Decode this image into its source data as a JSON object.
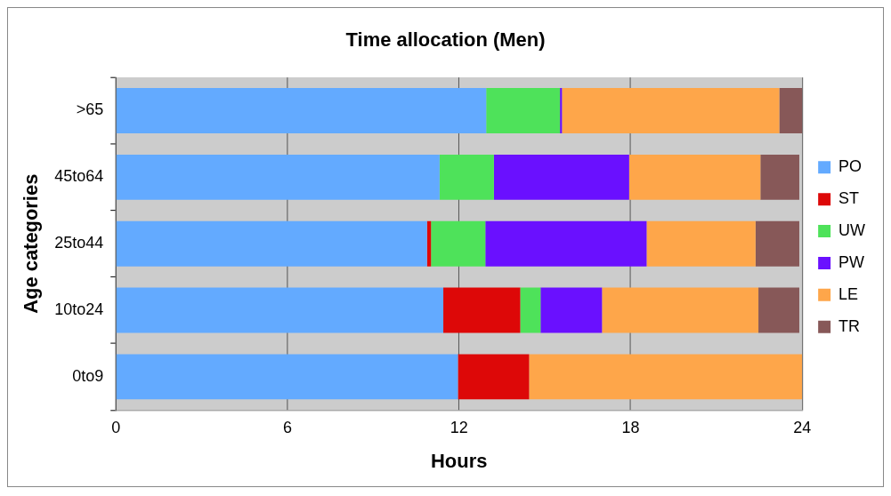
{
  "chart_data": {
    "type": "bar",
    "orientation": "horizontal",
    "stacked": true,
    "title": "Time allocation (Men)",
    "xlabel": "Hours",
    "ylabel": "Age categories",
    "categories": [
      ">65",
      "45to64",
      "25to44",
      "10to24",
      "0to9"
    ],
    "series": [
      {
        "name": "PO",
        "color": "#63aaff",
        "values": [
          12.95,
          11.32,
          10.88,
          11.45,
          11.96
        ]
      },
      {
        "name": "ST",
        "color": "#dd0808",
        "values": [
          null,
          null,
          0.14,
          2.69,
          2.49
        ]
      },
      {
        "name": "UW",
        "color": "#4ee25a",
        "values": [
          2.58,
          1.9,
          1.9,
          0.71,
          null
        ]
      },
      {
        "name": "PW",
        "color": "#6a10ff",
        "values": [
          0.07,
          4.73,
          5.64,
          2.15,
          null
        ]
      },
      {
        "name": "LE",
        "color": "#fea64a",
        "values": [
          7.6,
          4.59,
          3.81,
          5.47,
          9.55
        ]
      },
      {
        "name": "TR",
        "color": "#875858",
        "values": [
          0.85,
          1.36,
          1.53,
          1.43,
          null
        ]
      }
    ],
    "xlim": [
      0,
      24
    ],
    "xticks": [
      0,
      6,
      12,
      18,
      24
    ],
    "grid": "x",
    "legend": "right"
  }
}
